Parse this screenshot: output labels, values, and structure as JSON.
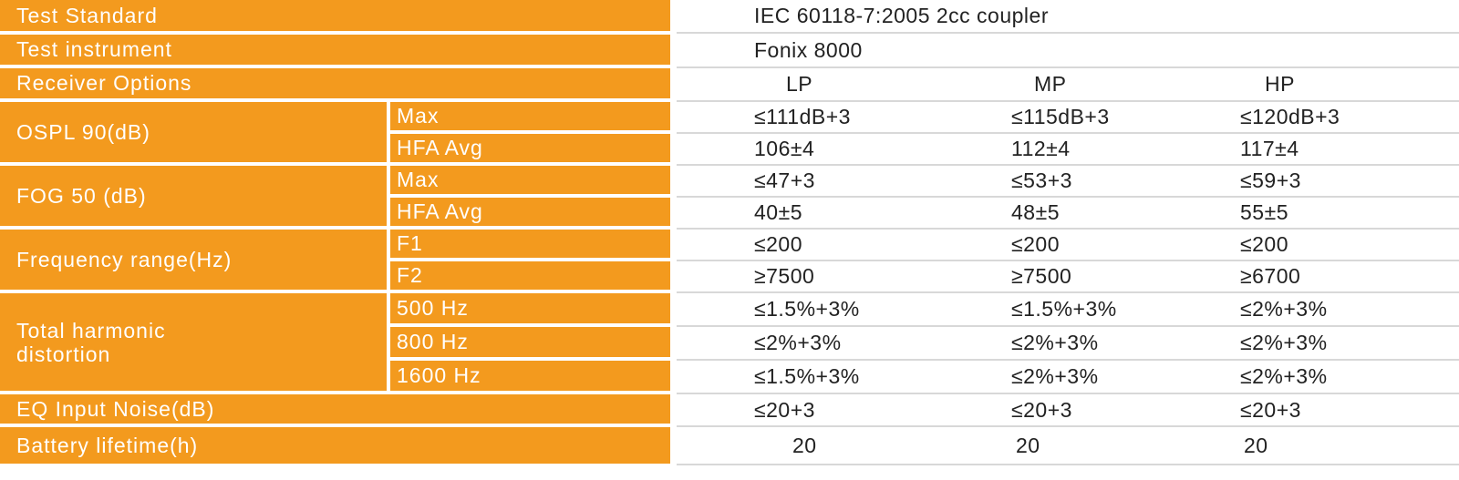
{
  "rows": {
    "test_standard": {
      "label": "Test Standard",
      "value": "IEC 60118-7:2005 2cc coupler"
    },
    "test_instrument": {
      "label": "Test instrument",
      "value": "Fonix 8000"
    },
    "receiver_options": {
      "label": "Receiver Options",
      "values": [
        "LP",
        "MP",
        "HP"
      ]
    },
    "ospl90": {
      "label": "OSPL 90(dB)",
      "sub": [
        {
          "label": "Max",
          "values": [
            "≤111dB+3",
            "≤115dB+3",
            "≤120dB+3"
          ]
        },
        {
          "label": "HFA Avg",
          "values": [
            "106±4",
            "112±4",
            "117±4"
          ]
        }
      ]
    },
    "fog50": {
      "label": "FOG 50 (dB)",
      "sub": [
        {
          "label": "Max",
          "values": [
            "≤47+3",
            "≤53+3",
            "≤59+3"
          ]
        },
        {
          "label": "HFA Avg",
          "values": [
            "40±5",
            "48±5",
            "55±5"
          ]
        }
      ]
    },
    "frequency_range": {
      "label": "Frequency range(Hz)",
      "sub": [
        {
          "label": "F1",
          "values": [
            "≤200",
            "≤200",
            "≤200"
          ]
        },
        {
          "label": "F2",
          "values": [
            "≥7500",
            "≥7500",
            "≥6700"
          ]
        }
      ]
    },
    "thd": {
      "label": "Total harmonic distortion",
      "sub": [
        {
          "label": "500 Hz",
          "values": [
            "≤1.5%+3%",
            "≤1.5%+3%",
            "≤2%+3%"
          ]
        },
        {
          "label": "800 Hz",
          "values": [
            "≤2%+3%",
            "≤2%+3%",
            "≤2%+3%"
          ]
        },
        {
          "label": "1600 Hz",
          "values": [
            "≤1.5%+3%",
            "≤2%+3%",
            "≤2%+3%"
          ]
        }
      ]
    },
    "eq_input_noise": {
      "label": "EQ Input Noise(dB)",
      "values": [
        "≤20+3",
        "≤20+3",
        "≤20+3"
      ]
    },
    "battery_lifetime": {
      "label": "Battery lifetime(h)",
      "values": [
        "20",
        "20",
        "20"
      ]
    }
  },
  "colors": {
    "label_bg": "#f39a1e",
    "label_text": "#ffffff",
    "value_text": "#222222",
    "grid_line": "#d8d8d8"
  }
}
